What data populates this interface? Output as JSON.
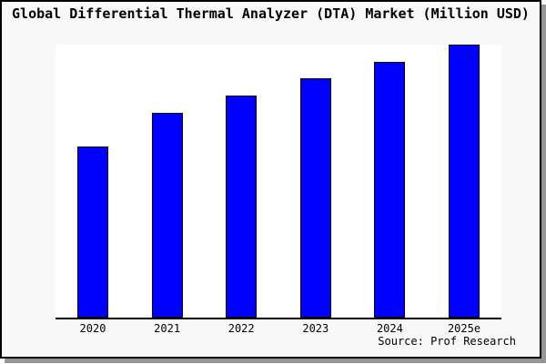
{
  "chart_data": {
    "type": "bar",
    "title": "Global Differential Thermal Analyzer (DTA) Market (Million USD)",
    "categories": [
      "2020",
      "2021",
      "2022",
      "2023",
      "2024",
      "2025e"
    ],
    "values": [
      62.7,
      75.0,
      81.3,
      87.7,
      93.7,
      100
    ],
    "values_note": "chart shows no y-axis, gridlines or data labels; values are bar heights relative to the tallest bar (2025e = 100)",
    "xlabel": "",
    "ylabel": "",
    "ylim": [
      0,
      100
    ],
    "grid": false,
    "legend": "none",
    "bar_color": "#0000ff",
    "bar_border_color": "#000000",
    "source": "Source: Prof Research"
  },
  "colors": {
    "frame_background": "#f8f8f8",
    "plot_background": "#ffffff",
    "frame_border": "#000000",
    "axis": "#000000",
    "shadow": "#969696",
    "text": "#000000"
  }
}
